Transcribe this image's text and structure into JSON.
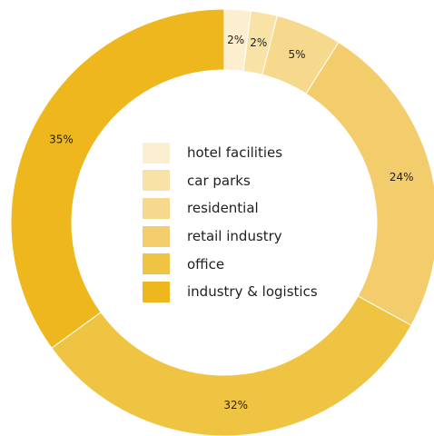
{
  "chart_data": {
    "type": "pie",
    "categories": [
      "hotel facilities",
      "car parks",
      "residential",
      "retail industry",
      "office",
      "industry & logistics"
    ],
    "values": [
      2,
      2,
      5,
      24,
      32,
      35
    ],
    "value_labels": [
      "2%",
      "2%",
      "5%",
      "24%",
      "32%",
      "35%"
    ],
    "colors": [
      "#fcefd0",
      "#f9e2a5",
      "#f6d98c",
      "#f3cd6b",
      "#f0c443",
      "#edb71d"
    ],
    "donut": true,
    "legend_position": "center",
    "start_angle_deg": 0,
    "direction": "clockwise"
  }
}
